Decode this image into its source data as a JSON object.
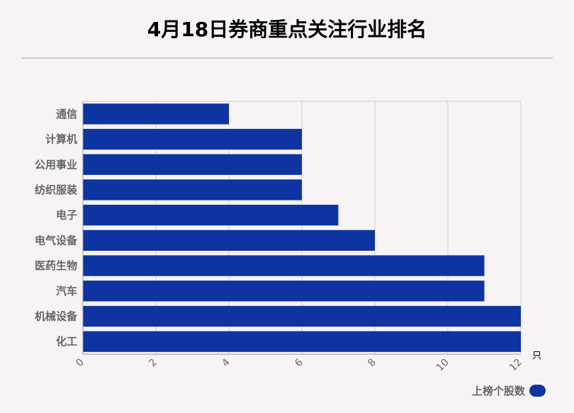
{
  "title": "4月18日券商重点关注行业排名",
  "colors": {
    "bar": "#0d34a1",
    "grid": "#cccccc",
    "axis": "#999999",
    "category_text": "#666666",
    "tick_text": "#666666"
  },
  "chart_data": {
    "type": "bar",
    "orientation": "horizontal",
    "categories": [
      "通信",
      "计算机",
      "公用事业",
      "纺织服装",
      "电子",
      "电气设备",
      "医药生物",
      "汽车",
      "机械设备",
      "化工"
    ],
    "values": [
      4,
      6,
      6,
      6,
      7,
      8,
      11,
      11,
      12,
      12
    ],
    "series": [
      {
        "name": "上榜个股数",
        "values": [
          4,
          6,
          6,
          6,
          7,
          8,
          11,
          11,
          12,
          12
        ]
      }
    ],
    "x_ticks": [
      "0",
      "2",
      "4",
      "6",
      "8",
      "10",
      "12"
    ],
    "xlim": [
      0,
      12
    ],
    "x_unit": "只",
    "grid": true,
    "legend_position": "bottom-right"
  }
}
